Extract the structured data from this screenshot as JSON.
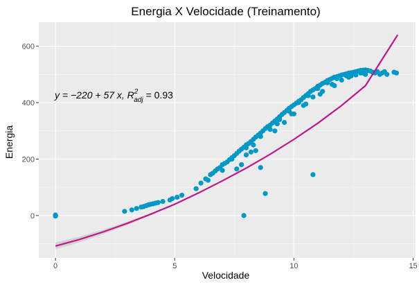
{
  "chart_data": {
    "type": "scatter",
    "title": "Energia X Velocidade (Treinamento)",
    "xlabel": "Velocidade",
    "ylabel": "Energia",
    "xlim": [
      -0.7,
      15.1
    ],
    "ylim": [
      -150,
      685
    ],
    "xticks": [
      0,
      5,
      10,
      15
    ],
    "yticks": [
      0,
      200,
      400,
      600
    ],
    "grid": true,
    "annotation": {
      "prefix": "y = −220 + 57 x,  R",
      "sup": "2",
      "sub": "adj",
      "suffix": " = 0.93"
    },
    "fit_line": {
      "x": [
        0,
        1,
        2,
        3,
        4,
        5,
        6,
        7,
        8,
        9,
        10,
        11,
        12,
        13,
        14.35
      ],
      "y": [
        -108,
        -85,
        -58,
        -28,
        5,
        40,
        80,
        123,
        168,
        217,
        270,
        327,
        390,
        460,
        640
      ],
      "band_halfwidth": [
        12,
        10,
        8,
        6,
        4,
        3,
        2,
        2,
        2,
        2,
        2,
        2,
        3,
        4,
        6
      ]
    },
    "series": [
      {
        "colors": {
          "points": "#0099c6",
          "line": "#c0168b",
          "band": "#c2c2c2"
        },
        "x": [
          0,
          0,
          0,
          0,
          2.9,
          3.2,
          3.4,
          3.6,
          3.7,
          3.8,
          3.9,
          4.0,
          4.1,
          4.2,
          4.3,
          4.5,
          4.8,
          4.9,
          5.1,
          5.3,
          5.9,
          6.1,
          6.3,
          6.5,
          6.6,
          6.7,
          6.8,
          6.9,
          7.0,
          7.1,
          7.2,
          7.3,
          7.4,
          7.5,
          7.6,
          7.7,
          7.8,
          7.9,
          8.0,
          8.1,
          8.2,
          8.3,
          8.4,
          8.5,
          8.6,
          8.7,
          8.8,
          8.9,
          9.0,
          9.1,
          9.2,
          9.3,
          9.4,
          9.5,
          9.6,
          9.7,
          9.8,
          9.9,
          10.0,
          10.1,
          10.2,
          10.3,
          10.4,
          10.5,
          10.6,
          10.7,
          10.8,
          10.9,
          11.0,
          11.1,
          11.2,
          11.3,
          11.4,
          11.5,
          11.6,
          11.7,
          11.8,
          11.9,
          12.0,
          12.1,
          12.2,
          12.3,
          12.4,
          12.5,
          12.6,
          12.7,
          12.8,
          12.9,
          13.0,
          13.1,
          13.2,
          13.3,
          13.5,
          13.7,
          13.9,
          14.2,
          14.3,
          7.9,
          8.8,
          8.6,
          10.8,
          8.0,
          8.2,
          8.4,
          7.6,
          7.8,
          9.2,
          9.6,
          10.0,
          10.4,
          10.8,
          11.2,
          11.6,
          12.0,
          12.4,
          12.8,
          11.8,
          12.2,
          12.6,
          13.0,
          8.3,
          9.0,
          9.4,
          9.8,
          10.2,
          10.6,
          11.0,
          11.4,
          6.4,
          7.0,
          7.4,
          8.0,
          8.6,
          9.3,
          9.9,
          10.5,
          11.1,
          11.7,
          12.3,
          12.9,
          13.4,
          13.6,
          13.8
        ],
        "y": [
          0,
          2,
          -2,
          1,
          15,
          20,
          25,
          30,
          32,
          35,
          38,
          40,
          42,
          44,
          46,
          50,
          55,
          60,
          65,
          72,
          95,
          115,
          130,
          145,
          150,
          158,
          165,
          170,
          180,
          185,
          190,
          198,
          205,
          212,
          220,
          228,
          235,
          242,
          250,
          255,
          262,
          270,
          278,
          285,
          292,
          300,
          308,
          315,
          320,
          328,
          335,
          342,
          350,
          358,
          365,
          372,
          380,
          386,
          392,
          398,
          405,
          410,
          418,
          425,
          432,
          440,
          445,
          450,
          458,
          462,
          468,
          472,
          478,
          482,
          486,
          490,
          492,
          495,
          498,
          500,
          502,
          505,
          506,
          508,
          510,
          512,
          514,
          515,
          516,
          514,
          512,
          508,
          510,
          505,
          500,
          508,
          505,
          0,
          78,
          170,
          145,
          215,
          225,
          230,
          165,
          180,
          300,
          330,
          360,
          390,
          420,
          440,
          465,
          480,
          495,
          505,
          485,
          495,
          498,
          500,
          250,
          305,
          340,
          370,
          400,
          425,
          450,
          470,
          125,
          160,
          200,
          240,
          280,
          325,
          360,
          395,
          430,
          460,
          490,
          505,
          505,
          500,
          510
        ]
      }
    ]
  }
}
